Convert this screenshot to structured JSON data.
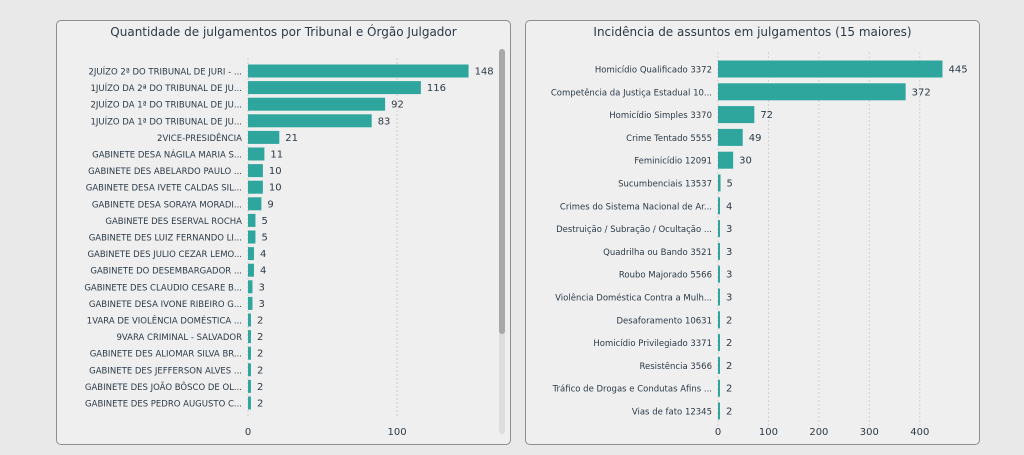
{
  "chart_data": [
    {
      "type": "bar",
      "orientation": "horizontal",
      "title": "Quantidade de julgamentos por Tribunal e Órgão Julgador",
      "categories": [
        "2JUÍZO 2ª DO TRIBUNAL DE JURI - ...",
        "1JUÍZO DA 2ª DO TRIBUNAL DE JU...",
        "2JUÍZO DA 1ª DO TRIBUNAL DE JU...",
        "1JUÍZO DA 1ª DO TRIBUNAL DE JU...",
        "2VICE-PRESIDÊNCIA",
        "GABINETE DESA NÁGILA MARIA S...",
        "GABINETE DES ABELARDO PAULO ...",
        "GABINETE DESA IVETE CALDAS SIL...",
        "GABINETE DESA SORAYA MORADI...",
        "GABINETE DES ESERVAL ROCHA",
        "GABINETE DES LUIZ FERNANDO LI...",
        "GABINETE DES JULIO CEZAR LEMO...",
        "GABINETE DO DESEMBARGADOR ...",
        "GABINETE DES CLAUDIO CESARE B...",
        "GABINETE DESA IVONE RIBEIRO G...",
        "1VARA DE VIOLÊNCIA DOMÉSTICA ...",
        "9VARA CRIMINAL - SALVADOR",
        "GABINETE DES ALIOMAR SILVA BR...",
        "GABINETE DES JEFFERSON ALVES ...",
        "GABINETE DES JOÃO BÔSCO DE OL...",
        "GABINETE DES PEDRO AUGUSTO C..."
      ],
      "values": [
        148,
        116,
        92,
        83,
        21,
        11,
        10,
        10,
        9,
        5,
        5,
        4,
        4,
        3,
        3,
        2,
        2,
        2,
        2,
        2,
        2
      ],
      "xticks": [
        0,
        100
      ],
      "xlim": [
        0,
        155
      ],
      "grid": true,
      "color": "#2ea69e"
    },
    {
      "type": "bar",
      "orientation": "horizontal",
      "title": "Incidência de assuntos em julgamentos (15 maiores)",
      "categories": [
        "Homicídio Qualificado 3372",
        "Competência da Justiça Estadual 10...",
        "Homicídio Simples 3370",
        "Crime Tentado 5555",
        "Feminicídio 12091",
        "Sucumbenciais 13537",
        "Crimes do Sistema Nacional de Ar...",
        "Destruição / Subração / Ocultação ...",
        "Quadrilha ou Bando 3521",
        "Roubo Majorado 5566",
        "Violência Doméstica Contra a Mulh...",
        "Desaforamento 10631",
        "Homicídio Privilegiado 3371",
        "Resistência 3566",
        "Tráfico de Drogas e Condutas Afins ...",
        "Vias de fato 12345"
      ],
      "values": [
        445,
        372,
        72,
        49,
        30,
        5,
        4,
        3,
        3,
        3,
        3,
        2,
        2,
        2,
        2,
        2
      ],
      "xticks": [
        0,
        100,
        200,
        300,
        400
      ],
      "xlim": [
        0,
        450
      ],
      "grid": true,
      "color": "#2ea69e"
    }
  ]
}
